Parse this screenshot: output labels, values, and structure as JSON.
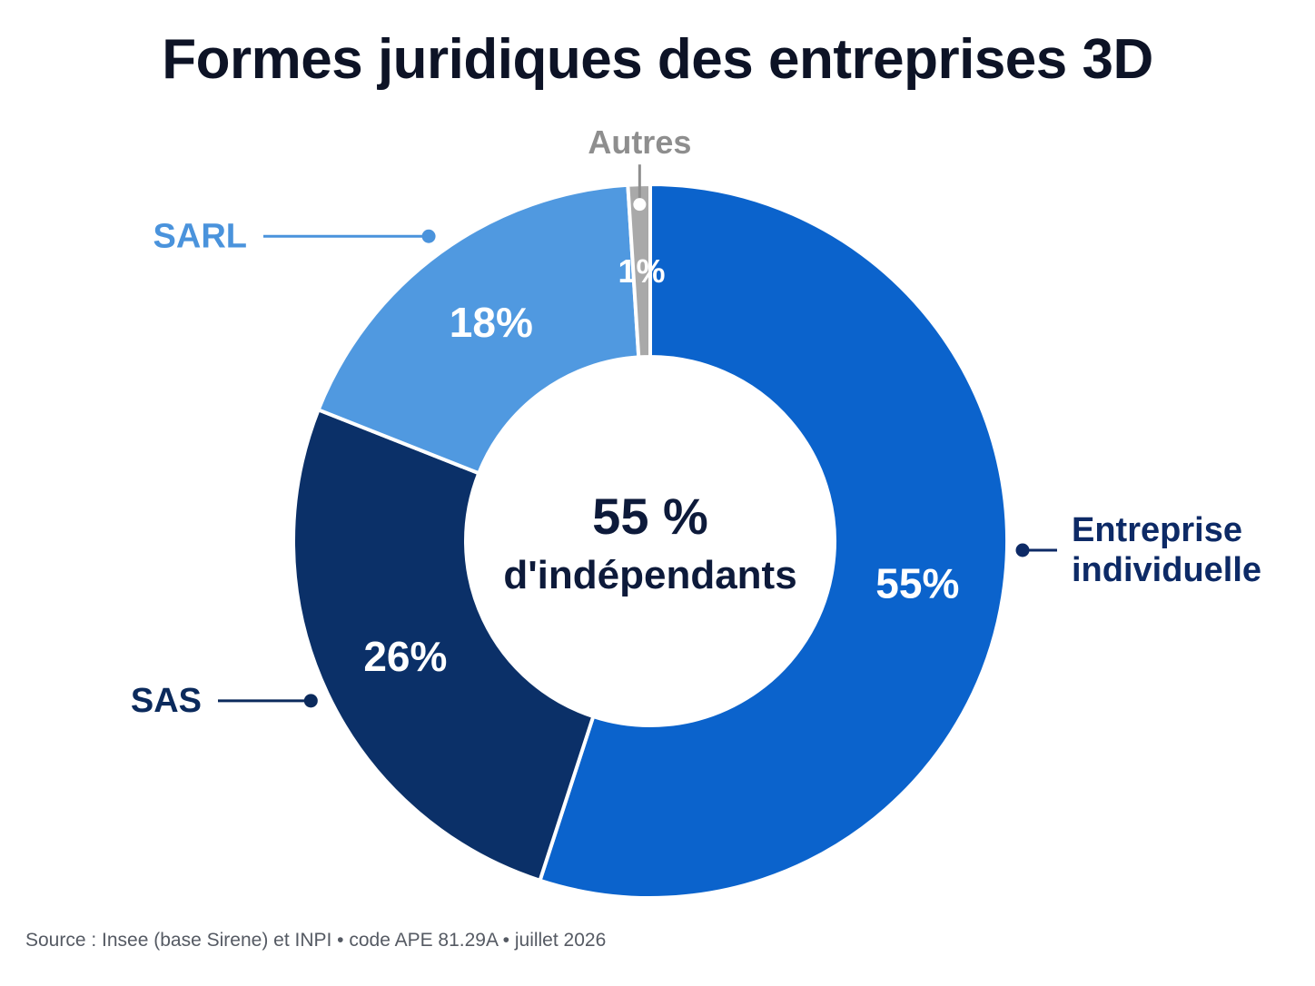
{
  "chart_data": {
    "type": "pie",
    "title": "Formes juridiques des entreprises 3D",
    "donut": true,
    "center_label": {
      "line1": "55 %",
      "line2": "d'indépendants"
    },
    "slices": [
      {
        "name": "Entreprise individuelle",
        "name_lines": [
          "Entreprise",
          "individuelle"
        ],
        "value": 55,
        "label": "55%",
        "color": "#0b63cc",
        "legend_color": "#0d2a66"
      },
      {
        "name": "SAS",
        "name_lines": [
          "SAS"
        ],
        "value": 26,
        "label": "26%",
        "color": "#0b3068",
        "legend_color": "#0b2a5c"
      },
      {
        "name": "SARL",
        "name_lines": [
          "SARL"
        ],
        "value": 18,
        "label": "18%",
        "color": "#5099e0",
        "legend_color": "#4a93dc"
      },
      {
        "name": "Autres",
        "name_lines": [
          "Autres"
        ],
        "value": 1,
        "label": "1%",
        "color": "#a9a9a9",
        "legend_color": "#8e8e8e"
      }
    ],
    "source": "Source : Insee (base Sirene) et INPI • code APE 81.29A • juillet 2026"
  }
}
